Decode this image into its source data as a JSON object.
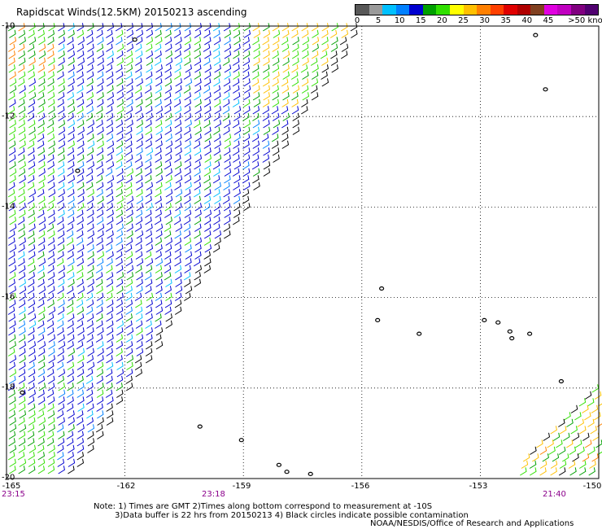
{
  "title": "Rapidscat Winds(12.5KM) 20150213 ascending",
  "legend": {
    "labels": [
      "0",
      "5",
      "10",
      "15",
      "20",
      "25",
      "30",
      "35",
      "40",
      "45",
      ">50 knots"
    ],
    "colors": [
      "#585858",
      "#9a9a9a",
      "#00c0ff",
      "#0080ff",
      "#0000d0",
      "#00a000",
      "#30e000",
      "#ffff00",
      "#ffc000",
      "#ff8000",
      "#ff4000",
      "#e00000",
      "#b00000",
      "#804020",
      "#e000e0",
      "#c000c0",
      "#800080",
      "#500070"
    ]
  },
  "latitudes": [
    "-10",
    "-12",
    "-14",
    "-16",
    "-18",
    "-20"
  ],
  "longitudes": [
    "-165",
    "-162",
    "-159",
    "-156",
    "-153",
    "-150"
  ],
  "times": [
    "23:15",
    "23:18",
    "21:40"
  ],
  "notes": [
    "Note: 1) Times are GMT 2)Times along bottom correspond to measurement at -10S",
    "3)Data buffer is 22 hrs from 20150213 4) Black circles indicate possible contamination"
  ],
  "agency": "NOAA/NESDIS/Office of Research and Applications",
  "map_extent": {
    "lon": [
      -165,
      -150
    ],
    "lat": [
      -20,
      -10
    ]
  },
  "swaths": [
    {
      "id": "main",
      "color_note": "mostly blue 10-15 kt, green/yellow 15-25 kt"
    },
    {
      "id": "southeast",
      "color_note": "green/yellow/orange 15-30 kt"
    }
  ],
  "islands": [
    {
      "lon": -161.75,
      "lat": -10.3
    },
    {
      "lon": -163.2,
      "lat": -13.2
    },
    {
      "lon": -151.6,
      "lat": -10.2
    },
    {
      "lon": -151.35,
      "lat": -11.4
    },
    {
      "lon": -155.5,
      "lat": -15.8
    },
    {
      "lon": -155.6,
      "lat": -16.5
    },
    {
      "lon": -154.55,
      "lat": -16.8
    },
    {
      "lon": -152.9,
      "lat": -16.5
    },
    {
      "lon": -152.55,
      "lat": -16.55
    },
    {
      "lon": -152.25,
      "lat": -16.75
    },
    {
      "lon": -152.2,
      "lat": -16.9
    },
    {
      "lon": -151.75,
      "lat": -16.8
    },
    {
      "lon": -150.95,
      "lat": -17.85
    },
    {
      "lon": -164.6,
      "lat": -18.1
    },
    {
      "lon": -160.1,
      "lat": -18.85
    },
    {
      "lon": -159.05,
      "lat": -19.15
    },
    {
      "lon": -158.1,
      "lat": -19.7
    },
    {
      "lon": -157.3,
      "lat": -19.9
    },
    {
      "lon": -157.9,
      "lat": -19.85
    }
  ]
}
